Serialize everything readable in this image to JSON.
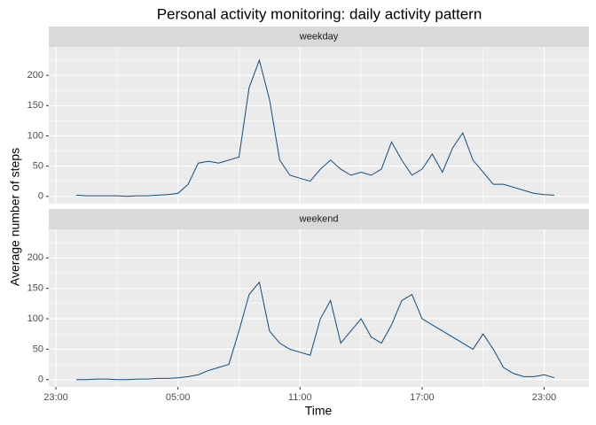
{
  "chart_data": {
    "type": "line",
    "title": "Personal activity monitoring: daily activity pattern",
    "xlabel": "Time",
    "ylabel": "Average number of steps",
    "facets": true,
    "x": [
      0,
      0.5,
      1,
      1.5,
      2,
      2.5,
      3,
      3.5,
      4,
      4.5,
      5,
      5.5,
      6,
      6.5,
      7,
      7.5,
      8,
      8.5,
      9,
      9.5,
      10,
      10.5,
      11,
      11.5,
      12,
      12.5,
      13,
      13.5,
      14,
      14.5,
      15,
      15.5,
      16,
      16.5,
      17,
      17.5,
      18,
      18.5,
      19,
      19.5,
      20,
      20.5,
      21,
      21.5,
      22,
      22.5,
      23,
      23.5
    ],
    "series": [
      {
        "name": "weekday",
        "color": "#0f4c81",
        "values": [
          2,
          1,
          1,
          1,
          1,
          0,
          1,
          1,
          2,
          3,
          5,
          20,
          55,
          58,
          55,
          60,
          65,
          180,
          225,
          160,
          60,
          35,
          30,
          25,
          45,
          60,
          45,
          35,
          40,
          35,
          45,
          90,
          60,
          35,
          45,
          70,
          40,
          80,
          105,
          60,
          40,
          20,
          20,
          15,
          10,
          5,
          3,
          2
        ]
      },
      {
        "name": "weekend",
        "color": "#0f4c81",
        "values": [
          0,
          0,
          1,
          1,
          0,
          0,
          1,
          1,
          2,
          2,
          3,
          5,
          8,
          15,
          20,
          25,
          80,
          140,
          160,
          80,
          60,
          50,
          45,
          40,
          100,
          130,
          60,
          80,
          100,
          70,
          60,
          90,
          130,
          140,
          100,
          90,
          80,
          70,
          60,
          50,
          75,
          50,
          20,
          10,
          5,
          5,
          8,
          3
        ]
      }
    ],
    "xlim": [
      -1.35,
      25.2
    ],
    "xticks": [
      {
        "value": -1,
        "label": "23:00"
      },
      {
        "value": 5,
        "label": "05:00"
      },
      {
        "value": 11,
        "label": "11:00"
      },
      {
        "value": 17,
        "label": "17:00"
      },
      {
        "value": 23,
        "label": "23:00"
      }
    ],
    "xminor": [
      2,
      8,
      14,
      20
    ],
    "ylim": [
      -12,
      247
    ],
    "yticks": [
      0,
      50,
      100,
      150,
      200
    ],
    "yminor": [
      25,
      75,
      125,
      175,
      225
    ],
    "grid": true
  }
}
